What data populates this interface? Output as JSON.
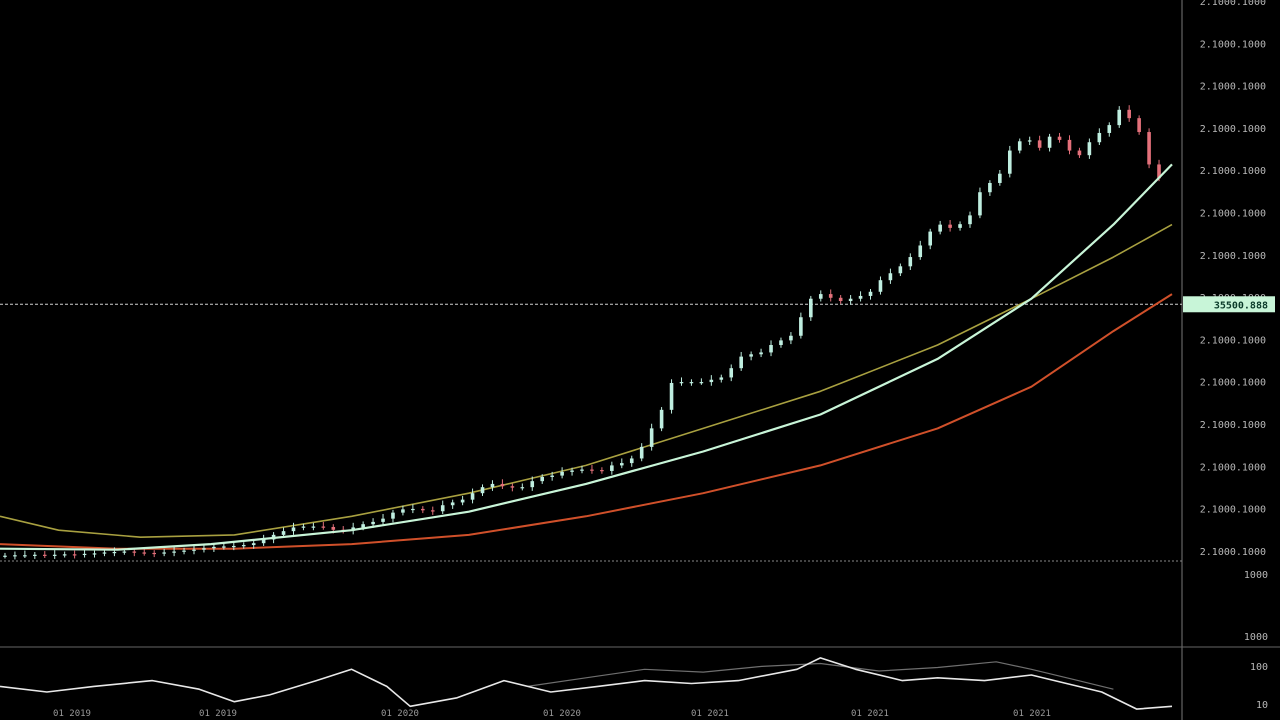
{
  "chart_data": {
    "type": "candlestick",
    "title": "",
    "price_axis_labels": [
      "2.1000.1000",
      "2.1000.1000",
      "2.1000.1000",
      "2.1000.1000",
      "2.1000.1000",
      "2.1000.1000",
      "2.1000.1000",
      "2.1000.1000",
      "2.1000.1000",
      "2.1000.1000",
      "2.1000.1000",
      "2.1000.1000",
      "2.1000.1000",
      "2.1000.1000"
    ],
    "current_price_label": "35500.888",
    "current_price_level": 0.548,
    "oscillator_axis_labels": [
      "1000",
      "1000",
      "100",
      "10"
    ],
    "date_labels": [
      "01 2019",
      "01 2019",
      "01 2020",
      "01 2020",
      "01 2021",
      "01 2021",
      "01 2021"
    ],
    "x_range": [
      0,
      100
    ],
    "y_range": [
      0,
      1
    ],
    "grid": false,
    "colors": {
      "background": "#000000",
      "bullish": "#bfeee0",
      "bearish": "#e3707a",
      "ma_fast": "#c8f5d8",
      "ma_mid": "#a8a040",
      "ma_slow": "#d0502a",
      "oscillator": "#e8e8e8",
      "price_tag": "#c8f5d8"
    },
    "candles_close": [
      0.005,
      0.006,
      0.006,
      0.007,
      0.006,
      0.007,
      0.008,
      0.007,
      0.009,
      0.01,
      0.012,
      0.013,
      0.014,
      0.012,
      0.011,
      0.01,
      0.012,
      0.014,
      0.016,
      0.018,
      0.021,
      0.024,
      0.025,
      0.026,
      0.028,
      0.032,
      0.04,
      0.05,
      0.058,
      0.066,
      0.068,
      0.068,
      0.067,
      0.061,
      0.059,
      0.066,
      0.073,
      0.078,
      0.085,
      0.098,
      0.105,
      0.106,
      0.103,
      0.101,
      0.114,
      0.12,
      0.126,
      0.14,
      0.153,
      0.16,
      0.155,
      0.152,
      0.153,
      0.166,
      0.175,
      0.178,
      0.186,
      0.189,
      0.191,
      0.19,
      0.188,
      0.2,
      0.205,
      0.215,
      0.24,
      0.28,
      0.32,
      0.378,
      0.38,
      0.38,
      0.38,
      0.385,
      0.39,
      0.41,
      0.435,
      0.44,
      0.444,
      0.46,
      0.47,
      0.48,
      0.52,
      0.56,
      0.57,
      0.562,
      0.555,
      0.56,
      0.566,
      0.575,
      0.6,
      0.615,
      0.63,
      0.65,
      0.675,
      0.705,
      0.72,
      0.713,
      0.721,
      0.74,
      0.79,
      0.81,
      0.83,
      0.88,
      0.9,
      0.902,
      0.886,
      0.91,
      0.903,
      0.88,
      0.87,
      0.898,
      0.918,
      0.935,
      0.968,
      0.95,
      0.92,
      0.85,
      0.82
    ],
    "ma_fast": [
      [
        0,
        0.02
      ],
      [
        10,
        0.018
      ],
      [
        18,
        0.03
      ],
      [
        30,
        0.06
      ],
      [
        40,
        0.1
      ],
      [
        50,
        0.16
      ],
      [
        60,
        0.23
      ],
      [
        70,
        0.31
      ],
      [
        80,
        0.43
      ],
      [
        88,
        0.56
      ],
      [
        95,
        0.72
      ],
      [
        100,
        0.85
      ]
    ],
    "ma_mid": [
      [
        0,
        0.09
      ],
      [
        5,
        0.06
      ],
      [
        12,
        0.045
      ],
      [
        20,
        0.05
      ],
      [
        30,
        0.09
      ],
      [
        40,
        0.14
      ],
      [
        50,
        0.2
      ],
      [
        60,
        0.28
      ],
      [
        70,
        0.36
      ],
      [
        80,
        0.46
      ],
      [
        88,
        0.56
      ],
      [
        95,
        0.65
      ],
      [
        100,
        0.72
      ]
    ],
    "ma_slow": [
      [
        0,
        0.03
      ],
      [
        10,
        0.02
      ],
      [
        20,
        0.02
      ],
      [
        30,
        0.03
      ],
      [
        40,
        0.05
      ],
      [
        50,
        0.09
      ],
      [
        60,
        0.14
      ],
      [
        70,
        0.2
      ],
      [
        80,
        0.28
      ],
      [
        88,
        0.37
      ],
      [
        95,
        0.49
      ],
      [
        100,
        0.57
      ]
    ],
    "oscillator": [
      [
        0,
        0.45
      ],
      [
        4,
        0.35
      ],
      [
        8,
        0.45
      ],
      [
        13,
        0.55
      ],
      [
        17,
        0.4
      ],
      [
        20,
        0.18
      ],
      [
        23,
        0.3
      ],
      [
        27,
        0.55
      ],
      [
        30,
        0.75
      ],
      [
        33,
        0.45
      ],
      [
        35,
        0.1
      ],
      [
        39,
        0.25
      ],
      [
        43,
        0.55
      ],
      [
        47,
        0.35
      ],
      [
        51,
        0.45
      ],
      [
        55,
        0.55
      ],
      [
        59,
        0.5
      ],
      [
        63,
        0.55
      ],
      [
        68,
        0.75
      ],
      [
        70,
        0.95
      ],
      [
        73,
        0.75
      ],
      [
        77,
        0.55
      ],
      [
        80,
        0.6
      ],
      [
        84,
        0.55
      ],
      [
        88,
        0.65
      ],
      [
        91,
        0.5
      ],
      [
        94,
        0.35
      ],
      [
        97,
        0.05
      ],
      [
        100,
        0.1
      ]
    ],
    "oscillator_shadow": [
      [
        45,
        0.45
      ],
      [
        50,
        0.6
      ],
      [
        55,
        0.75
      ],
      [
        60,
        0.7
      ],
      [
        65,
        0.8
      ],
      [
        70,
        0.85
      ],
      [
        75,
        0.72
      ],
      [
        80,
        0.78
      ],
      [
        85,
        0.88
      ],
      [
        88,
        0.75
      ],
      [
        92,
        0.55
      ],
      [
        95,
        0.4
      ]
    ]
  }
}
